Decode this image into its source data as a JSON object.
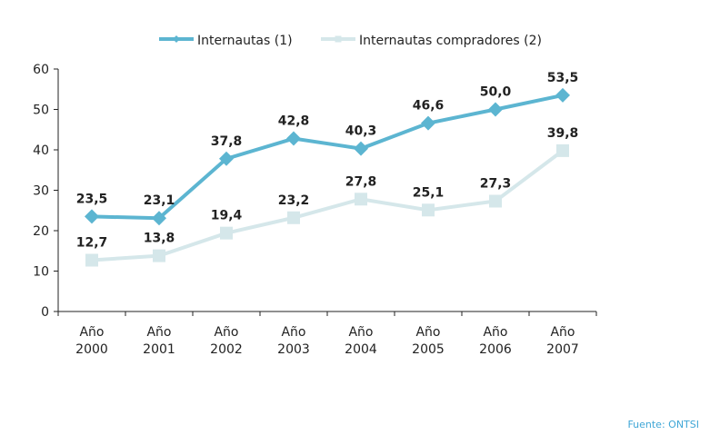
{
  "chart_data": {
    "type": "line",
    "categories": [
      [
        "Año",
        "2000"
      ],
      [
        "Año",
        "2001"
      ],
      [
        "Año",
        "2002"
      ],
      [
        "Año",
        "2003"
      ],
      [
        "Año",
        "2004"
      ],
      [
        "Año",
        "2005"
      ],
      [
        "Año",
        "2006"
      ],
      [
        "Año",
        "2007"
      ]
    ],
    "ylim": [
      0,
      60
    ],
    "yticks": [
      0,
      10,
      20,
      30,
      40,
      50,
      60
    ],
    "grid": false,
    "legend": "top",
    "series": [
      {
        "name": "Internautas (1)",
        "values": [
          23.5,
          23.1,
          37.8,
          42.8,
          40.3,
          46.6,
          50.0,
          53.5
        ],
        "labels": [
          "23,5",
          "23,1",
          "37,8",
          "42,8",
          "40,3",
          "46,6",
          "50,0",
          "53,5"
        ],
        "color": "#5cb5d1",
        "marker": "diamond"
      },
      {
        "name": "Internautas compradores (2)",
        "values": [
          12.7,
          13.8,
          19.4,
          23.2,
          27.8,
          25.1,
          27.3,
          39.8
        ],
        "labels": [
          "12,7",
          "13,8",
          "19,4",
          "23,2",
          "27,8",
          "25,1",
          "27,3",
          "39,8"
        ],
        "color": "#d5e7ea",
        "marker": "square"
      }
    ]
  },
  "source": "Fuente: ONTSI"
}
